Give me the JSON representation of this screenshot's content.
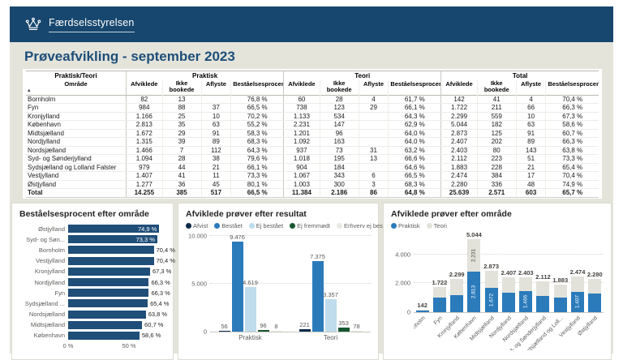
{
  "colors": {
    "header_bar": "#17476e",
    "title_text": "#1d4e79",
    "navy_bar": "#1f4e79",
    "praktisk_blue": "#2b7bbb",
    "teori_gray": "#e2e2da",
    "canvas_bg": "#e4e4db"
  },
  "brand": {
    "logo_text": "Færdselsstyrelsen"
  },
  "page": {
    "title": "Prøveafvikling - september 2023"
  },
  "table": {
    "corner_header": "Praktisk/Teori",
    "area_header": "Område",
    "sort_indicator": "▲",
    "groups": [
      "Praktisk",
      "Teori",
      "Total"
    ],
    "measure_headers": [
      "Afviklede",
      "Ikke bookede",
      "Aflyste",
      "Beståelsesprocent"
    ],
    "rows": [
      {
        "area": "Bornholm",
        "cells": [
          "82",
          "13",
          "",
          "76,8 %",
          "60",
          "28",
          "4",
          "61,7 %",
          "142",
          "41",
          "4",
          "70,4 %"
        ]
      },
      {
        "area": "Fyn",
        "cells": [
          "984",
          "88",
          "37",
          "66,5 %",
          "738",
          "123",
          "29",
          "66,1 %",
          "1.722",
          "211",
          "66",
          "66,3 %"
        ]
      },
      {
        "area": "Kronjylland",
        "cells": [
          "1.166",
          "25",
          "10",
          "70,2 %",
          "1.133",
          "534",
          "",
          "64,3 %",
          "2.299",
          "559",
          "10",
          "67,3 %"
        ]
      },
      {
        "area": "København",
        "cells": [
          "2.813",
          "35",
          "63",
          "55,2 %",
          "2.231",
          "147",
          "",
          "62,9 %",
          "5.044",
          "182",
          "63",
          "58,6 %"
        ]
      },
      {
        "area": "Midtsjælland",
        "cells": [
          "1.672",
          "29",
          "91",
          "58,3 %",
          "1.201",
          "96",
          "",
          "64,0 %",
          "2.873",
          "125",
          "91",
          "60,7 %"
        ]
      },
      {
        "area": "Nordjylland",
        "cells": [
          "1.315",
          "39",
          "89",
          "68,3 %",
          "1.092",
          "163",
          "",
          "64,0 %",
          "2.407",
          "202",
          "89",
          "66,3 %"
        ]
      },
      {
        "area": "Nordsjælland",
        "cells": [
          "1.466",
          "7",
          "112",
          "64,3 %",
          "937",
          "73",
          "31",
          "63,2 %",
          "2.403",
          "80",
          "143",
          "63,8 %"
        ]
      },
      {
        "area": "Syd- og Sønderjylland",
        "cells": [
          "1.094",
          "28",
          "38",
          "79,6 %",
          "1.018",
          "195",
          "13",
          "66,6 %",
          "2.112",
          "223",
          "51",
          "73,3 %"
        ]
      },
      {
        "area": "Sydsjælland og Lolland Falster",
        "cells": [
          "979",
          "44",
          "21",
          "66,1 %",
          "904",
          "184",
          "",
          "64,6 %",
          "1.883",
          "228",
          "21",
          "65,4 %"
        ]
      },
      {
        "area": "Vestjylland",
        "cells": [
          "1.407",
          "41",
          "11",
          "73,3 %",
          "1.067",
          "343",
          "6",
          "66,5 %",
          "2.474",
          "384",
          "17",
          "70,4 %"
        ]
      },
      {
        "area": "Østjylland",
        "cells": [
          "1.277",
          "36",
          "45",
          "80,1 %",
          "1.003",
          "300",
          "3",
          "68,3 %",
          "2.280",
          "336",
          "48",
          "74,9 %"
        ]
      }
    ],
    "total_row": {
      "area": "Total",
      "cells": [
        "14.255",
        "385",
        "517",
        "66,5 %",
        "11.384",
        "2.186",
        "86",
        "64,8 %",
        "25.639",
        "2.571",
        "603",
        "65,7 %"
      ]
    }
  },
  "chart_data": [
    {
      "type": "bar",
      "orientation": "horizontal",
      "title": "Beståelsesprocent efter område",
      "categories": [
        "Østjylland",
        "Syd- og Søn...",
        "Bornholm",
        "Vestjylland",
        "Kronjylland",
        "Nordjylland",
        "Fyn",
        "Sydsjælland ...",
        "Nordsjælland",
        "Midtsjælland",
        "København"
      ],
      "values": [
        74.9,
        73.3,
        70.4,
        70.4,
        67.3,
        66.3,
        66.3,
        65.4,
        63.8,
        60.7,
        58.6
      ],
      "labels": [
        "74,9 %",
        "73,3 %",
        "70,4 %",
        "70,4 %",
        "67,3 %",
        "66,3 %",
        "66,3 %",
        "65,4 %",
        "63,8 %",
        "60,7 %",
        "58,6 %"
      ],
      "label_inside": [
        true,
        true,
        false,
        false,
        false,
        false,
        false,
        false,
        false,
        false,
        false
      ],
      "xlim": [
        0,
        80
      ],
      "x_ticks": [
        {
          "value": 0,
          "label": "0 %"
        },
        {
          "value": 50,
          "label": "50 %"
        }
      ],
      "bar_color": "#1f4e79",
      "grid": false,
      "legend_position": "none"
    },
    {
      "type": "bar",
      "orientation": "vertical",
      "grouped": true,
      "title": "Afviklede prøver efter resultat",
      "categories": [
        "Praktisk",
        "Teori"
      ],
      "series": [
        {
          "name": "Afvist",
          "color": "#0b2b49",
          "values": [
            56,
            221
          ],
          "labels": [
            "56",
            "221"
          ]
        },
        {
          "name": "Bestået",
          "color": "#2b7bbb",
          "values": [
            9476,
            7375
          ],
          "labels": [
            "9.476",
            "7.375"
          ]
        },
        {
          "name": "Ej bestået",
          "color": "#bedcec",
          "values": [
            4619,
            3357
          ],
          "labels": [
            "4.619",
            "3.357"
          ]
        },
        {
          "name": "Ej fremmødt",
          "color": "#17572f",
          "values": [
            96,
            353
          ],
          "labels": [
            "96",
            "353"
          ]
        },
        {
          "name": "Erhverv ej bestået",
          "color": "#e9e9e4",
          "values": [
            8,
            78
          ],
          "labels": [
            "8",
            "78"
          ]
        }
      ],
      "ylim": [
        0,
        10500
      ],
      "y_ticks": [
        {
          "value": 0,
          "label": "0"
        },
        {
          "value": 5000,
          "label": "5.000"
        },
        {
          "value": 10000,
          "label": "10.000"
        }
      ],
      "grid": true,
      "legend_position": "top"
    },
    {
      "type": "bar",
      "orientation": "vertical",
      "stacked": true,
      "title": "Afviklede prøver efter område",
      "categories": [
        "Bornholm",
        "Fyn",
        "Kronjylland",
        "København",
        "Midtsjælland",
        "Nordjylland",
        "Nordsjælland",
        "Syd- og Sønderjylland",
        "Sydsjælland og Loll...",
        "Vestjylland",
        "Østjylland"
      ],
      "series": [
        {
          "name": "Praktisk",
          "color": "#2b7bbb",
          "values": [
            82,
            984,
            1166,
            2813,
            1672,
            1315,
            1466,
            1094,
            979,
            1407,
            1277
          ],
          "inside_labels": [
            "",
            "",
            "",
            "2.813",
            "1.672",
            "",
            "1.466",
            "",
            "",
            "1.407",
            ""
          ],
          "inside_label_color": "#ffffff"
        },
        {
          "name": "Teori",
          "color": "#e2e2da",
          "values": [
            60,
            738,
            1133,
            2231,
            1201,
            1092,
            937,
            1018,
            904,
            1067,
            1003
          ],
          "inside_labels": [
            "",
            "",
            "",
            "2.231",
            "",
            "",
            "",
            "",
            "",
            "",
            ""
          ],
          "inside_label_color": "#44423f"
        }
      ],
      "total_labels": [
        "142",
        "1.722",
        "2.299",
        "5.044",
        "2.873",
        "2.407",
        "2.403",
        "2.112",
        "1.883",
        "2.474",
        "2.280"
      ],
      "ylim": [
        0,
        5600
      ],
      "y_ticks": [
        {
          "value": 0,
          "label": "0"
        },
        {
          "value": 2000,
          "label": "2.000"
        },
        {
          "value": 4000,
          "label": "4.000"
        }
      ],
      "grid": true,
      "legend_position": "top"
    }
  ]
}
